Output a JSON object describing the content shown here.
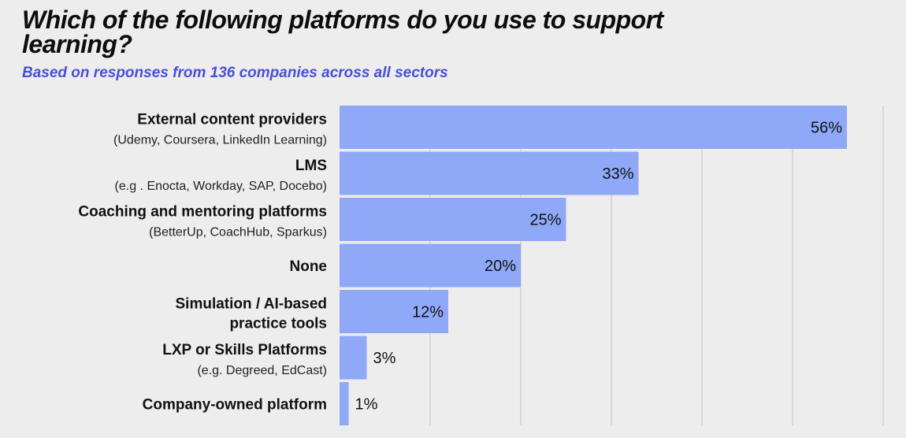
{
  "title": "Which of the following platforms do you use to support learning?",
  "subtitle": "Based on responses from 136 companies across all sectors",
  "colors": {
    "bar": "#8fa8f8",
    "grid": "#c4c4c4",
    "background": "#ededed",
    "subtitle": "#4a4fd6"
  },
  "chart_data": {
    "type": "bar",
    "orientation": "horizontal",
    "categories": [
      {
        "label": [
          "External content providers"
        ],
        "sublabel": "(Udemy, Coursera, LinkedIn Learning)"
      },
      {
        "label": [
          "LMS"
        ],
        "sublabel": "(e.g . Enocta, Workday, SAP, Docebo)"
      },
      {
        "label": [
          "Coaching and mentoring platforms"
        ],
        "sublabel": "(BetterUp, CoachHub, Sparkus)"
      },
      {
        "label": [
          "None"
        ],
        "sublabel": ""
      },
      {
        "label": [
          "Simulation / AI-based",
          "practice tools"
        ],
        "sublabel": ""
      },
      {
        "label": [
          "LXP or Skills Platforms"
        ],
        "sublabel": "(e.g. Degreed, EdCast)"
      },
      {
        "label": [
          "Company-owned platform"
        ],
        "sublabel": ""
      }
    ],
    "values": [
      56,
      33,
      25,
      20,
      12,
      3,
      1
    ],
    "value_labels": [
      "56%",
      "33%",
      "25%",
      "20%",
      "12%",
      "3%",
      "1%"
    ],
    "xlim": [
      0,
      60
    ],
    "grid": true,
    "gridline_values": [
      10,
      20,
      30,
      40,
      50,
      60
    ]
  }
}
